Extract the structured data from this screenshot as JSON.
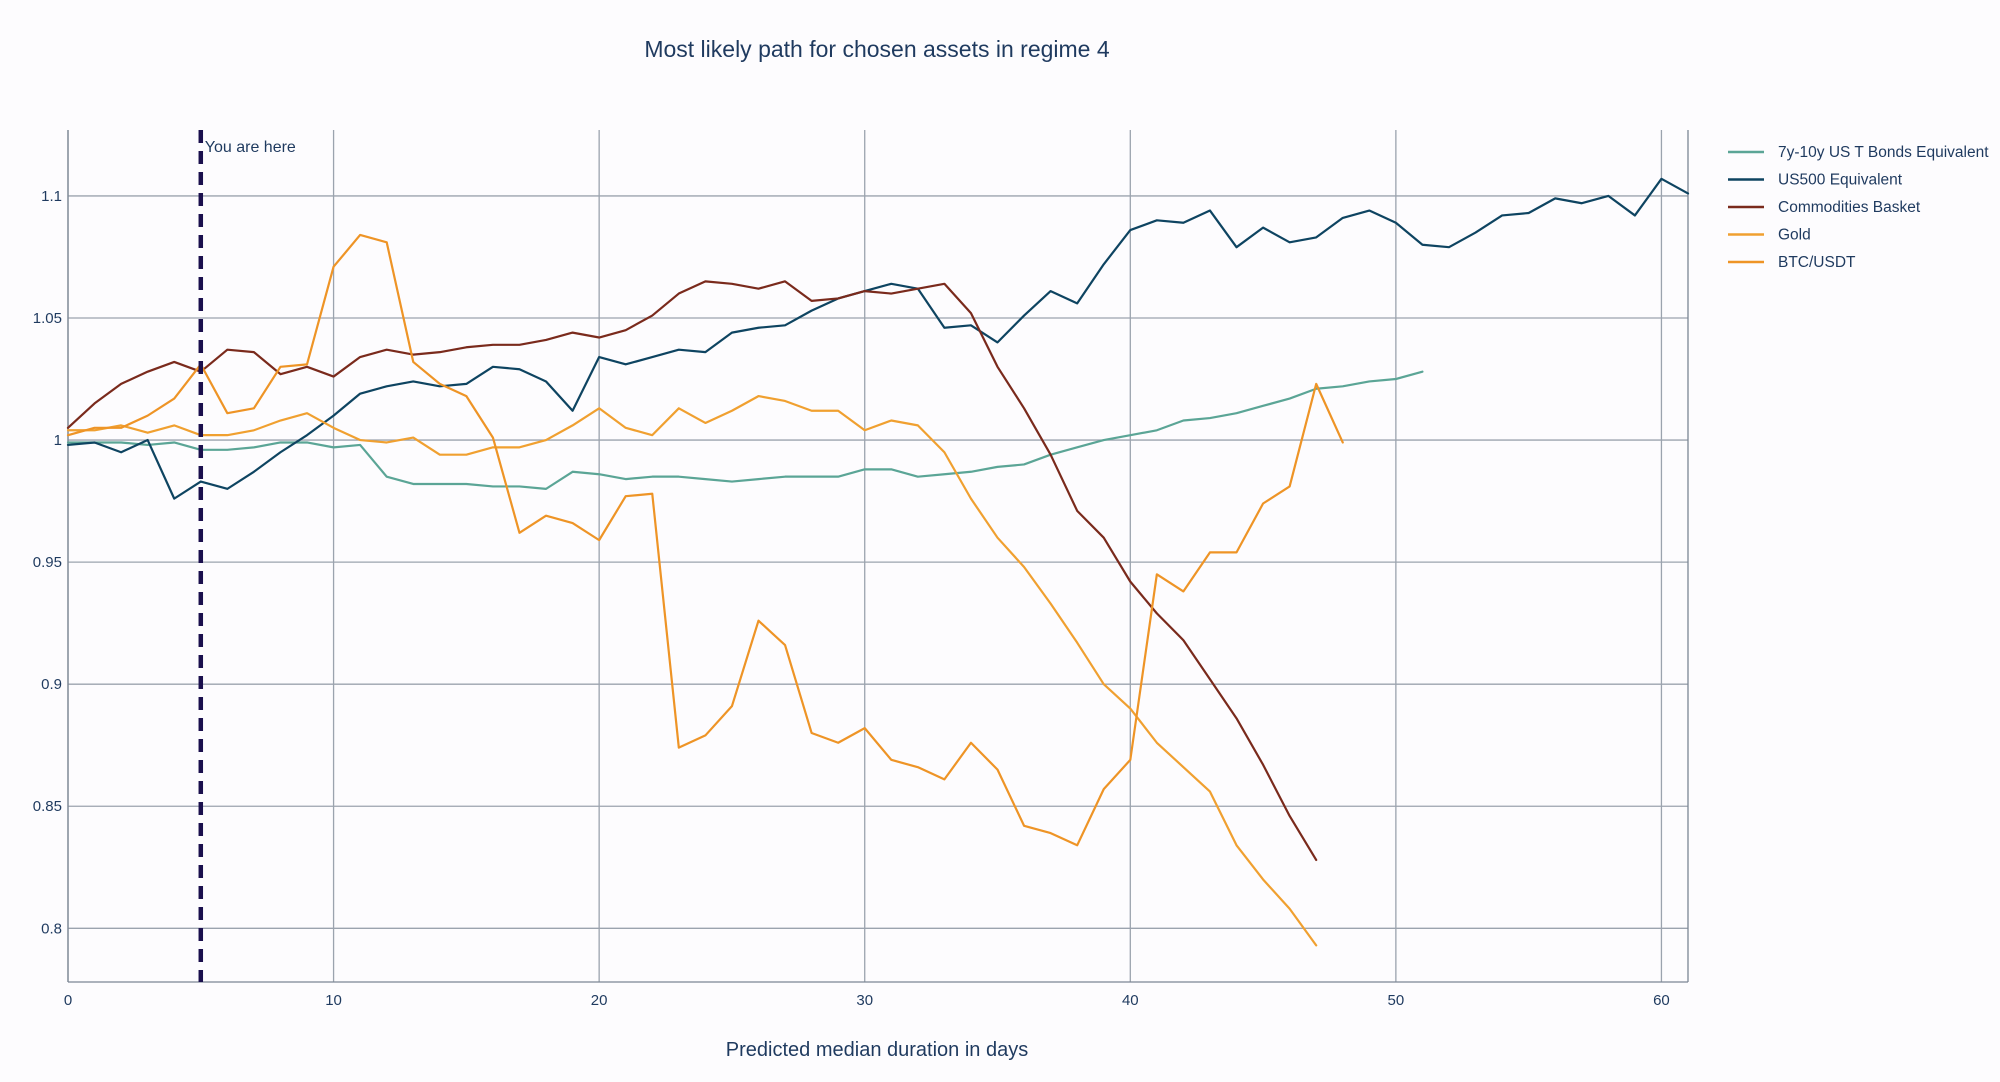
{
  "chart_data": {
    "type": "line",
    "title": "Most likely path for chosen assets in regime 4",
    "xlabel": "Predicted median duration in days",
    "ylabel": "",
    "xlim": [
      0,
      61
    ],
    "ylim": [
      0.778,
      1.127
    ],
    "x_ticks": [
      0,
      10,
      20,
      30,
      40,
      50,
      60
    ],
    "x_tick_labels": [
      "0",
      "10",
      "20",
      "30",
      "40",
      "50",
      "60"
    ],
    "y_ticks": [
      0.8,
      0.85,
      0.9,
      0.95,
      1.0,
      1.05,
      1.1
    ],
    "y_tick_labels": [
      "0.8",
      "0.85",
      "0.9",
      "0.95",
      "1",
      "1.05",
      "1.1"
    ],
    "grid": true,
    "legend_position": "top-right",
    "marker": {
      "x": 5,
      "label": "You are here",
      "color": "#1a0f4d"
    },
    "series": [
      {
        "name": "7y-10y US T Bonds Equivalent",
        "color": "#5ba596",
        "values": [
          0.999,
          0.999,
          0.999,
          0.998,
          0.999,
          0.996,
          0.996,
          0.997,
          0.999,
          0.999,
          0.997,
          0.998,
          0.985,
          0.982,
          0.982,
          0.982,
          0.981,
          0.981,
          0.98,
          0.987,
          0.986,
          0.984,
          0.985,
          0.985,
          0.984,
          0.983,
          0.984,
          0.985,
          0.985,
          0.985,
          0.988,
          0.988,
          0.985,
          0.986,
          0.987,
          0.989,
          0.99,
          0.994,
          0.997,
          1.0,
          1.002,
          1.004,
          1.008,
          1.009,
          1.011,
          1.014,
          1.017,
          1.021,
          1.022,
          1.024,
          1.025,
          1.028
        ]
      },
      {
        "name": "US500 Equivalent",
        "color": "#0e4461",
        "values": [
          0.998,
          0.999,
          0.995,
          1.0,
          0.976,
          0.983,
          0.98,
          0.987,
          0.995,
          1.002,
          1.01,
          1.019,
          1.022,
          1.024,
          1.022,
          1.023,
          1.03,
          1.029,
          1.024,
          1.012,
          1.034,
          1.031,
          1.034,
          1.037,
          1.036,
          1.044,
          1.046,
          1.047,
          1.053,
          1.058,
          1.061,
          1.064,
          1.062,
          1.046,
          1.047,
          1.04,
          1.051,
          1.061,
          1.056,
          1.072,
          1.086,
          1.09,
          1.089,
          1.094,
          1.079,
          1.087,
          1.081,
          1.083,
          1.091,
          1.094,
          1.089,
          1.08,
          1.079,
          1.085,
          1.092,
          1.093,
          1.099,
          1.097,
          1.1,
          1.092,
          1.107,
          1.101
        ]
      },
      {
        "name": "Commodities Basket",
        "color": "#7a2a1c",
        "values": [
          1.005,
          1.015,
          1.023,
          1.028,
          1.032,
          1.028,
          1.037,
          1.036,
          1.027,
          1.03,
          1.026,
          1.034,
          1.037,
          1.035,
          1.036,
          1.038,
          1.039,
          1.039,
          1.041,
          1.044,
          1.042,
          1.045,
          1.051,
          1.06,
          1.065,
          1.064,
          1.062,
          1.065,
          1.057,
          1.058,
          1.061,
          1.06,
          1.062,
          1.064,
          1.052,
          1.03,
          1.013,
          0.994,
          0.971,
          0.96,
          0.942,
          0.929,
          0.918,
          0.902,
          0.886,
          0.867,
          0.846,
          0.828
        ]
      },
      {
        "name": "Gold",
        "color": "#f0a030",
        "values": [
          1.004,
          1.004,
          1.006,
          1.003,
          1.006,
          1.002,
          1.002,
          1.004,
          1.008,
          1.011,
          1.005,
          1.0,
          0.999,
          1.001,
          0.994,
          0.994,
          0.997,
          0.997,
          1.0,
          1.006,
          1.013,
          1.005,
          1.002,
          1.013,
          1.007,
          1.012,
          1.018,
          1.016,
          1.012,
          1.012,
          1.004,
          1.008,
          1.006,
          0.995,
          0.976,
          0.96,
          0.948,
          0.933,
          0.917,
          0.9,
          0.89,
          0.876,
          0.866,
          0.856,
          0.834,
          0.82,
          0.808,
          0.793
        ]
      },
      {
        "name": "BTC/USDT",
        "color": "#ee9426",
        "values": [
          1.002,
          1.005,
          1.005,
          1.01,
          1.017,
          1.031,
          1.011,
          1.013,
          1.03,
          1.031,
          1.071,
          1.084,
          1.081,
          1.032,
          1.023,
          1.018,
          1.001,
          0.962,
          0.969,
          0.966,
          0.959,
          0.977,
          0.978,
          0.874,
          0.879,
          0.891,
          0.926,
          0.916,
          0.88,
          0.876,
          0.882,
          0.869,
          0.866,
          0.861,
          0.876,
          0.865,
          0.842,
          0.839,
          0.834,
          0.857,
          0.869,
          0.945,
          0.938,
          0.954,
          0.954,
          0.974,
          0.981,
          1.023,
          0.999
        ]
      }
    ]
  }
}
